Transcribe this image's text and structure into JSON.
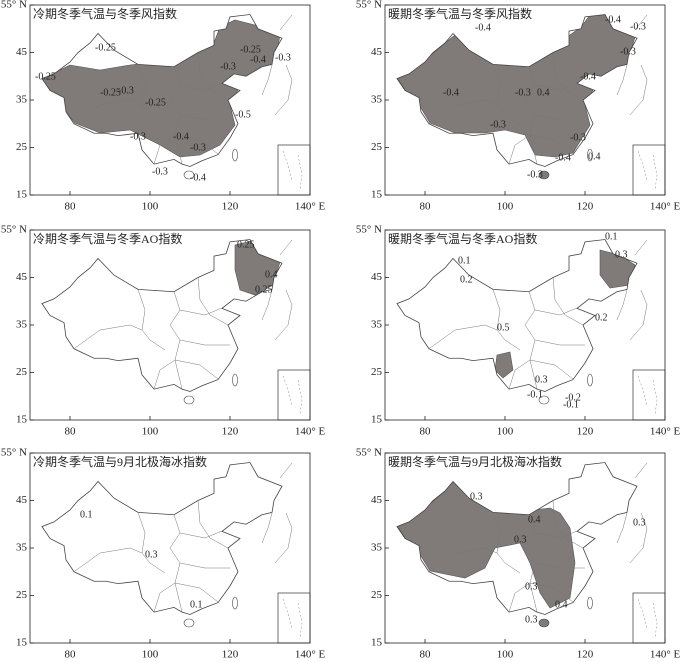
{
  "axes": {
    "lat_ticks": [
      "55° N",
      "45",
      "35",
      "25",
      "15"
    ],
    "lon_ticks": [
      "80",
      "100",
      "120",
      "140° E"
    ]
  },
  "panels": [
    {
      "title": "冷期冬季气温与冬季风指数",
      "contour_labels": [
        "-0.25",
        "-0.25",
        "-0.25",
        "-0.3",
        "-0.25",
        "-0.3",
        "-0.4",
        "-0.3",
        "-0.3",
        "-0.4",
        "-0.25",
        "-0.4",
        "-0.3",
        "-0.3",
        "-0.5"
      ]
    },
    {
      "title": "暖期冬季气温与冬季风指数",
      "contour_labels": [
        "-0.4",
        "-0.4",
        "-0.3",
        "-0.3",
        "-0.4",
        "-0.4",
        "-0.3",
        "0.4",
        "-0.3",
        "-0.3",
        "-0.4",
        "0.4",
        "-0.3"
      ]
    },
    {
      "title": "冷期冬季气温与冬季AO指数",
      "contour_labels": [
        "0.25",
        "0.4",
        "0.25"
      ]
    },
    {
      "title": "暖期冬季气温与冬季AO指数",
      "contour_labels": [
        "0.1",
        "0.3",
        "0.1",
        "0.2",
        "0.2",
        "0.5",
        "0.3",
        "-0.1",
        "-0.2",
        "-0.1"
      ]
    },
    {
      "title": "冷期冬季气温与9月北极海冰指数",
      "contour_labels": [
        "0.1",
        "0.3",
        "0.1"
      ]
    },
    {
      "title": "暖期冬季气温与9月北极海冰指数",
      "contour_labels": [
        "0.3",
        "0.3",
        "0.4",
        "0.3",
        "0.3",
        "0.4",
        "0.3"
      ]
    }
  ]
}
